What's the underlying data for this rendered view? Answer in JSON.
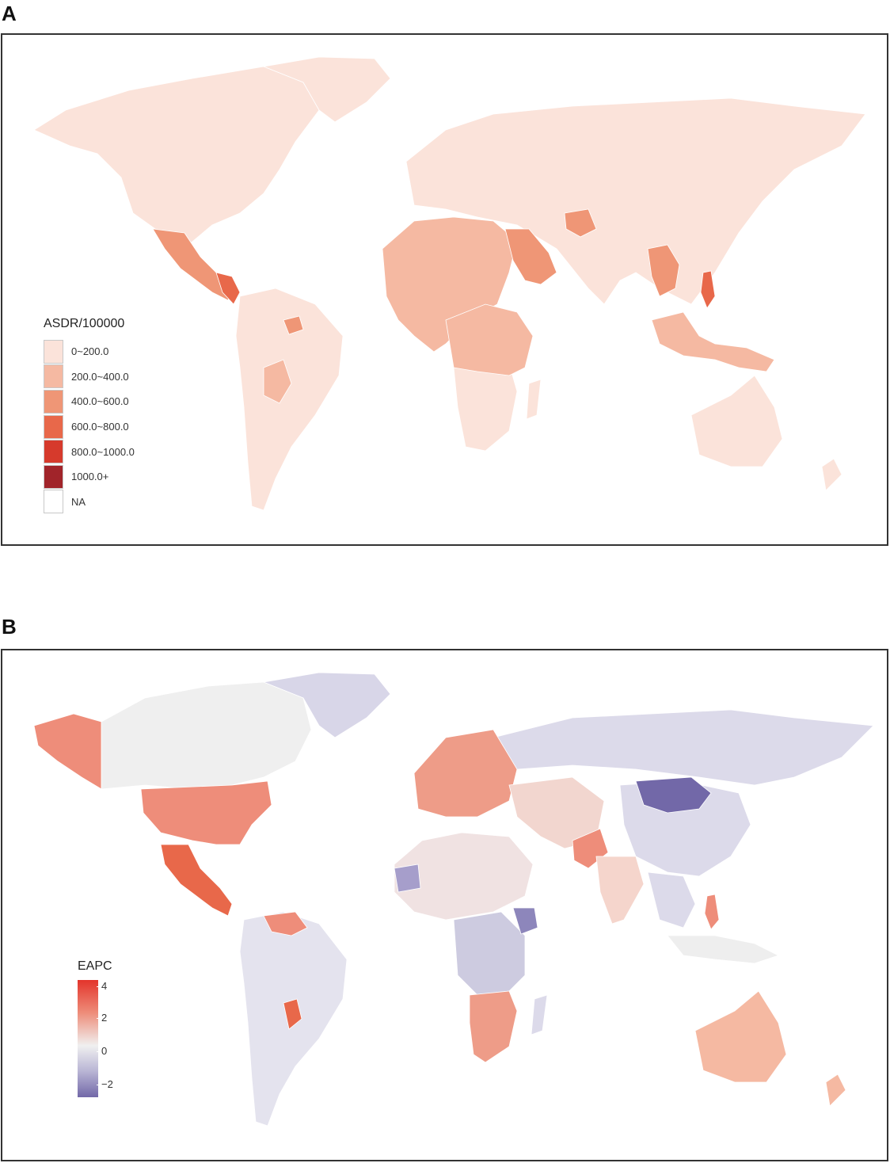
{
  "panels": {
    "a": {
      "label": "A",
      "legend": {
        "title": "ASDR/100000",
        "items": [
          {
            "label": "0~200.0",
            "color": "#fbe3da"
          },
          {
            "label": "200.0~400.0",
            "color": "#f5b9a2"
          },
          {
            "label": "400.0~600.0",
            "color": "#ef9676"
          },
          {
            "label": "600.0~800.0",
            "color": "#e8684a"
          },
          {
            "label": "800.0~1000.0",
            "color": "#d63a2c"
          },
          {
            "label": "1000.0+",
            "color": "#a1242a"
          },
          {
            "label": "NA",
            "color": "#ffffff"
          }
        ]
      }
    },
    "b": {
      "label": "B",
      "legend": {
        "title": "EAPC",
        "ticks": [
          "4",
          "2",
          "0",
          "−2"
        ],
        "colors": {
          "high": "#e3342b",
          "mid": "#f0f0f0",
          "low": "#7268a8"
        }
      }
    }
  }
}
